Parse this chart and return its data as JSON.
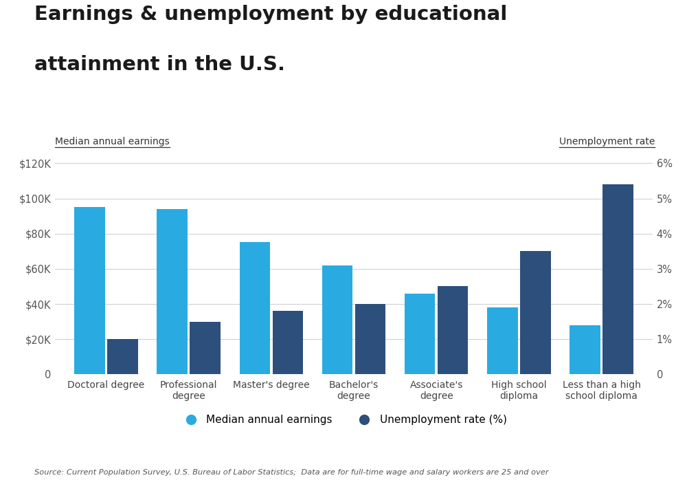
{
  "title_line1": "Earnings & unemployment by educational",
  "title_line2": "attainment in the U.S.",
  "categories": [
    "Doctoral degree",
    "Professional\ndegree",
    "Master's degree",
    "Bachelor's\ndegree",
    "Associate's\ndegree",
    "High school\ndiploma",
    "Less than a high\nschool diploma"
  ],
  "earnings": [
    95000,
    94000,
    75000,
    62000,
    46000,
    38000,
    28000
  ],
  "unemployment": [
    1.0,
    1.5,
    1.8,
    2.0,
    2.5,
    3.5,
    5.4
  ],
  "earnings_color": "#29ABE2",
  "unemployment_color": "#2D4F7C",
  "left_label": "Median annual earnings",
  "right_label": "Unemployment rate",
  "left_ylim": [
    0,
    120000
  ],
  "right_ylim": [
    0,
    6
  ],
  "left_yticks": [
    0,
    20000,
    40000,
    60000,
    80000,
    100000,
    120000
  ],
  "left_yticklabels": [
    "0",
    "$20K",
    "$40K",
    "$60K",
    "$80K",
    "$100K",
    "$120K"
  ],
  "right_yticks": [
    0,
    1,
    2,
    3,
    4,
    5,
    6
  ],
  "right_yticklabels": [
    "0",
    "1%",
    "2%",
    "3%",
    "4%",
    "5%",
    "6%"
  ],
  "legend_earnings": "Median annual earnings",
  "legend_unemployment": "Unemployment rate (%)",
  "source_text": "Source: Current Population Survey, U.S. Bureau of Labor Statistics;  Data are for full-time wage and salary workers are 25 and over",
  "background_color": "#FFFFFF",
  "grid_color": "#CCCCCC",
  "bar_width": 0.37,
  "bar_gap": 0.03
}
